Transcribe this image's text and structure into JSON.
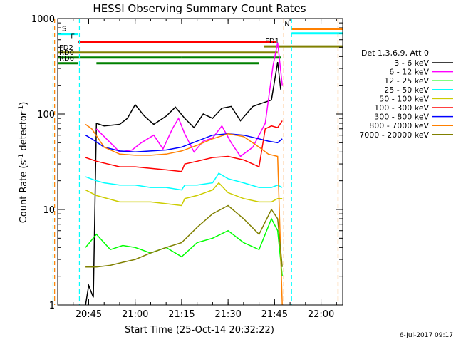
{
  "chart_data": {
    "type": "line",
    "title": "HESSI Observing Summary Count Rates",
    "xlabel": "Start Time (25-Oct-14 20:32:22)",
    "ylabel_main": "Count Rate (s",
    "ylabel_sup1": "-1",
    "ylabel_mid": " detector",
    "ylabel_sup2": "-1",
    "ylabel_end": ")",
    "timestamp": "6-Jul-2017 09:17",
    "y_scale": "log",
    "ylim": [
      1,
      1000
    ],
    "xlim": [
      "20:35:00",
      "22:07:00"
    ],
    "x_ticks": [
      "20:45",
      "21:00",
      "21:15",
      "21:30",
      "21:45",
      "22:00"
    ],
    "y_ticks": [
      "1",
      "10",
      "100",
      "1000"
    ],
    "legend": {
      "header": "Det 1,3,6,9, Att 0",
      "position": "right",
      "entries": [
        {
          "label": "3 - 6 keV",
          "color": "#000000"
        },
        {
          "label": "6 - 12 keV",
          "color": "#ff00ff"
        },
        {
          "label": "12 - 25 keV",
          "color": "#00ff00"
        },
        {
          "label": "25 - 50 keV",
          "color": "#00ffff"
        },
        {
          "label": "50 - 100 keV",
          "color": "#cccc00"
        },
        {
          "label": "100 - 300 keV",
          "color": "#ff0000"
        },
        {
          "label": "300 - 800 keV",
          "color": "#0000ff"
        },
        {
          "label": "800 - 7000 keV",
          "color": "#ff8000"
        },
        {
          "label": "7000 - 20000 keV",
          "color": "#808000"
        }
      ]
    },
    "flag_bars": [
      {
        "label": "S",
        "label_color": "#ff8000",
        "color": "#00ffff",
        "segments": [
          [
            "20:35:00",
            "20:41:30"
          ]
        ],
        "level": 690
      },
      {
        "label": "N",
        "label_color": "#00ffff",
        "color": "#ff8000",
        "segments": [
          [
            "21:50:30",
            "22:07:00"
          ]
        ],
        "level": 780
      },
      {
        "label": "",
        "label_color": "#00ffff",
        "color": "#00ffff",
        "segments": [
          [
            "21:50:30",
            "22:07:00"
          ]
        ],
        "level": 700
      },
      {
        "label": "F",
        "label_color": "#ff0000",
        "color": "#ff0000",
        "segments": [
          [
            "20:41:30",
            "21:45:30"
          ]
        ],
        "level": 570
      },
      {
        "label": "FD1",
        "label_color": "#808000",
        "color": "#808000",
        "segments": [
          [
            "21:41:30",
            "22:07:00"
          ]
        ],
        "level": 510
      },
      {
        "label": "FD2",
        "label_color": "#808000",
        "color": "#808000",
        "segments": [
          [
            "20:35:00",
            "21:46:00"
          ]
        ],
        "level": 440
      },
      {
        "label": "RD0",
        "label_color": "#008000",
        "color": "#008000",
        "segments": [
          [
            "20:35:00",
            "21:15:00"
          ],
          [
            "21:15:00",
            "21:47:00"
          ]
        ],
        "level": 390
      },
      {
        "label": "RD6",
        "label_color": "#008000",
        "color": "#008000",
        "segments": [
          [
            "20:35:00",
            "20:41:30"
          ],
          [
            "20:47:30",
            "21:40:00"
          ]
        ],
        "level": 340
      }
    ],
    "vlines": [
      {
        "time": "20:33:30",
        "color": "#00ffff"
      },
      {
        "time": "20:34:00",
        "color": "#ff8000"
      },
      {
        "time": "20:42:00",
        "color": "#00ffff"
      },
      {
        "time": "21:48:00",
        "color": "#ff8000"
      },
      {
        "time": "21:50:30",
        "color": "#00ffff"
      },
      {
        "time": "22:05:30",
        "color": "#ff8000"
      }
    ],
    "series": [
      {
        "name": "3 - 6 keV",
        "color": "#000000",
        "x": [
          "20:44:00",
          "20:45:00",
          "20:46:30",
          "20:47:30",
          "20:50:00",
          "20:55:00",
          "20:57:30",
          "21:00:00",
          "21:03:00",
          "21:06:00",
          "21:10:00",
          "21:13:00",
          "21:16:00",
          "21:19:00",
          "21:22:00",
          "21:25:00",
          "21:28:00",
          "21:31:00",
          "21:34:00",
          "21:38:00",
          "21:41:00",
          "21:44:00",
          "21:46:00",
          "21:47:00"
        ],
        "y": [
          1.0,
          1.6,
          1.2,
          80,
          75,
          78,
          90,
          125,
          95,
          78,
          95,
          118,
          90,
          72,
          100,
          90,
          115,
          120,
          85,
          120,
          130,
          140,
          350,
          180
        ]
      },
      {
        "name": "6 - 12 keV",
        "color": "#ff00ff",
        "x": [
          "20:47:30",
          "20:55:00",
          "20:59:00",
          "21:02:00",
          "21:06:00",
          "21:09:00",
          "21:12:00",
          "21:14:00",
          "21:16:00",
          "21:19:00",
          "21:22:00",
          "21:25:00",
          "21:28:00",
          "21:31:00",
          "21:34:00",
          "21:38:00",
          "21:42:00",
          "21:44:30",
          "21:46:00",
          "21:47:30"
        ],
        "y": [
          70,
          40,
          42,
          50,
          60,
          43,
          70,
          90,
          62,
          40,
          52,
          56,
          75,
          50,
          36,
          45,
          80,
          320,
          560,
          200
        ]
      },
      {
        "name": "12 - 25 keV",
        "color": "#00ff00",
        "x": [
          "20:44:00",
          "20:47:30",
          "20:52:00",
          "20:56:00",
          "21:00:00",
          "21:05:00",
          "21:10:00",
          "21:15:00",
          "21:20:00",
          "21:25:00",
          "21:30:00",
          "21:35:00",
          "21:40:00",
          "21:44:00",
          "21:46:00",
          "21:47:30"
        ],
        "y": [
          4.0,
          5.5,
          3.8,
          4.2,
          4.0,
          3.5,
          4.0,
          3.2,
          4.5,
          5.0,
          6.0,
          4.5,
          3.8,
          8.0,
          6.0,
          2.0
        ]
      },
      {
        "name": "25 - 50 keV",
        "color": "#00ffff",
        "x": [
          "20:44:00",
          "20:47:30",
          "20:50:00",
          "20:55:00",
          "21:00:00",
          "21:05:00",
          "21:10:00",
          "21:15:00",
          "21:16:00",
          "21:20:00",
          "21:25:00",
          "21:27:00",
          "21:30:00",
          "21:35:00",
          "21:40:00",
          "21:44:00",
          "21:46:00",
          "21:47:30"
        ],
        "y": [
          22,
          20,
          19,
          18,
          18,
          17,
          17,
          16,
          18,
          18,
          19,
          24,
          21,
          19,
          17,
          17,
          18,
          17
        ]
      },
      {
        "name": "50 - 100 keV",
        "color": "#cccc00",
        "x": [
          "20:44:00",
          "20:47:30",
          "20:55:00",
          "21:00:00",
          "21:05:00",
          "21:10:00",
          "21:15:00",
          "21:16:00",
          "21:20:00",
          "21:25:00",
          "21:27:00",
          "21:30:00",
          "21:35:00",
          "21:40:00",
          "21:44:00",
          "21:46:00",
          "21:47:30"
        ],
        "y": [
          16,
          14,
          12,
          12,
          12,
          11.5,
          11,
          13,
          14,
          16,
          19,
          15,
          13,
          12,
          12,
          13,
          13
        ]
      },
      {
        "name": "100 - 300 keV",
        "color": "#ff0000",
        "x": [
          "20:44:00",
          "20:47:30",
          "20:55:00",
          "21:00:00",
          "21:05:00",
          "21:10:00",
          "21:15:00",
          "21:16:00",
          "21:20:00",
          "21:25:00",
          "21:30:00",
          "21:35:00",
          "21:40:00",
          "21:42:00",
          "21:44:00",
          "21:46:00",
          "21:47:30"
        ],
        "y": [
          35,
          32,
          28,
          28,
          27,
          26,
          25,
          30,
          32,
          35,
          36,
          33,
          28,
          70,
          75,
          72,
          85
        ]
      },
      {
        "name": "300 - 800 keV",
        "color": "#0000ff",
        "x": [
          "20:44:00",
          "20:46:00",
          "20:50:00",
          "20:55:00",
          "21:00:00",
          "21:05:00",
          "21:10:00",
          "21:15:00",
          "21:20:00",
          "21:25:00",
          "21:30:00",
          "21:35:00",
          "21:40:00",
          "21:43:00",
          "21:46:00",
          "21:47:30"
        ],
        "y": [
          60,
          55,
          45,
          41,
          40,
          41,
          42,
          45,
          52,
          60,
          62,
          60,
          55,
          52,
          50,
          55
        ]
      },
      {
        "name": "800 - 7000 keV",
        "color": "#ff8000",
        "x": [
          "20:44:00",
          "20:46:00",
          "20:50:00",
          "20:55:00",
          "21:00:00",
          "21:05:00",
          "21:10:00",
          "21:15:00",
          "21:20:00",
          "21:25:00",
          "21:30:00",
          "21:35:00",
          "21:40:00",
          "21:43:00",
          "21:46:00",
          "21:47:30"
        ],
        "y": [
          78,
          70,
          45,
          38,
          37,
          37,
          38,
          41,
          47,
          55,
          62,
          58,
          45,
          38,
          36,
          1.0
        ]
      },
      {
        "name": "7000 - 20000 keV",
        "color": "#808000",
        "x": [
          "20:44:00",
          "20:47:30",
          "20:52:00",
          "20:56:00",
          "21:00:00",
          "21:05:00",
          "21:10:00",
          "21:15:00",
          "21:20:00",
          "21:25:00",
          "21:30:00",
          "21:35:00",
          "21:40:00",
          "21:44:00",
          "21:46:00",
          "21:47:30"
        ],
        "y": [
          2.5,
          2.5,
          2.6,
          2.8,
          3.0,
          3.5,
          4.0,
          4.5,
          6.5,
          9,
          11,
          8,
          5.5,
          10,
          8,
          2.5
        ]
      }
    ]
  }
}
